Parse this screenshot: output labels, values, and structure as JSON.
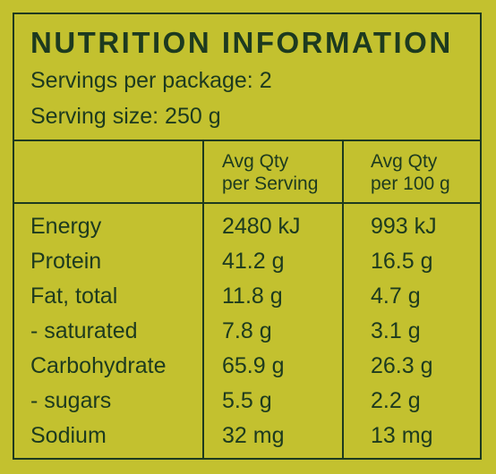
{
  "title": "NUTRITION INFORMATION",
  "servings_per_package": "Servings per package: 2",
  "serving_size": "Serving size: 250 g",
  "columns": {
    "per_serving": [
      "Avg Qty",
      "per Serving"
    ],
    "per_100g": [
      "Avg Qty",
      "per 100 g"
    ]
  },
  "rows": [
    {
      "name": "Energy",
      "per_serving": "2480 kJ",
      "per_100g": "993 kJ"
    },
    {
      "name": "Protein",
      "per_serving": "41.2 g",
      "per_100g": "16.5 g"
    },
    {
      "name": "Fat, total",
      "per_serving": "11.8 g",
      "per_100g": "4.7 g"
    },
    {
      "name": "- saturated",
      "per_serving": "7.8 g",
      "per_100g": "3.1 g"
    },
    {
      "name": "Carbohydrate",
      "per_serving": "65.9 g",
      "per_100g": "26.3 g"
    },
    {
      "name": "- sugars",
      "per_serving": "5.5 g",
      "per_100g": "2.2 g"
    },
    {
      "name": "Sodium",
      "per_serving": "32 mg",
      "per_100g": "13 mg"
    }
  ],
  "colors": {
    "background": "#c3c12f",
    "ink": "#1d3a1f"
  }
}
